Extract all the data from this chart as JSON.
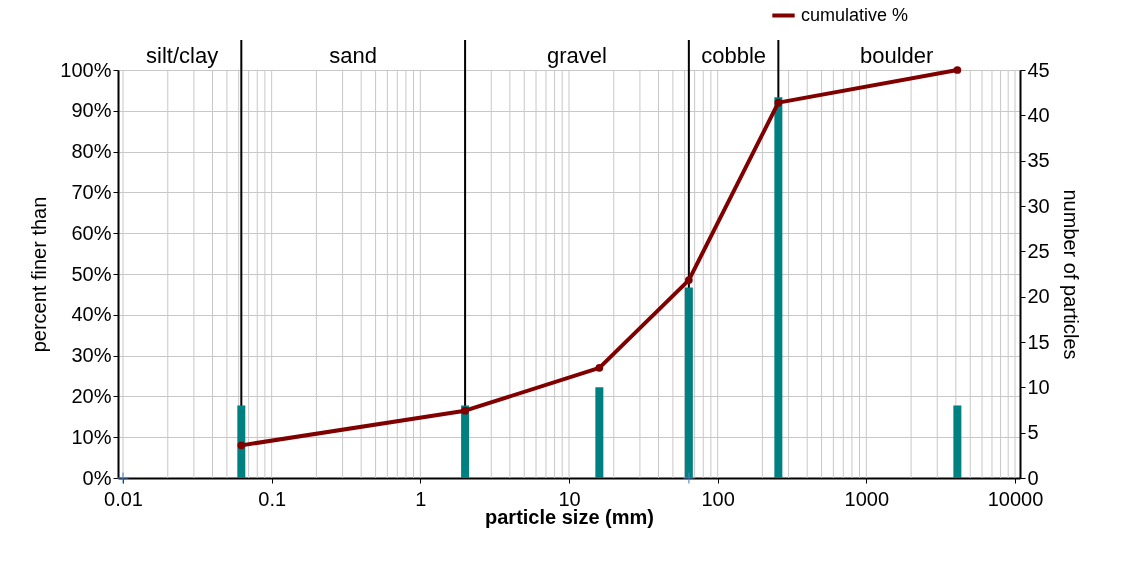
{
  "chart_data": {
    "type": "line",
    "xlabel": "particle size (mm)",
    "ylabel": "percent finer than",
    "y2label": "number of particles",
    "log": "x",
    "grid": true,
    "legend": "top right",
    "xlim": [
      0.01,
      10000
    ],
    "xticks": [
      0.01,
      0.1,
      1,
      10,
      100,
      1000,
      10000
    ],
    "ylim": [
      0,
      100
    ],
    "yticks": [
      {
        "value": 0,
        "label": "0%"
      },
      {
        "value": 10,
        "label": "10%"
      },
      {
        "value": 20,
        "label": "20%"
      },
      {
        "value": 30,
        "label": "30%"
      },
      {
        "value": 40,
        "label": "40%"
      },
      {
        "value": 50,
        "label": "50%"
      },
      {
        "value": 60,
        "label": "60%"
      },
      {
        "value": 70,
        "label": "70%"
      },
      {
        "value": 80,
        "label": "80%"
      },
      {
        "value": 90,
        "label": "90%"
      },
      {
        "value": 100,
        "label": "100%"
      }
    ],
    "y2lim": [
      0,
      45
    ],
    "y2ticks": [
      0,
      5,
      10,
      15,
      20,
      25,
      30,
      35,
      40,
      45
    ],
    "series": [
      {
        "name": "cumulative %",
        "marker": "circle",
        "color": "#800000",
        "x": [
          0.0625,
          2,
          16,
          64,
          256,
          4096
        ],
        "values": [
          8,
          16.5,
          27,
          48.5,
          92,
          100
        ]
      },
      {
        "type": "bar",
        "axis": "y2",
        "color": "#008080",
        "x": [
          0.0625,
          2,
          16,
          64,
          256,
          4096
        ],
        "values": [
          8,
          8,
          10,
          21,
          42,
          8
        ]
      },
      {
        "type": "scatter",
        "marker": "cross",
        "color": "#4f81bd",
        "x": [
          0.01,
          64
        ],
        "values": [
          0,
          0
        ]
      }
    ],
    "ref_lines": [
      {
        "axis": "x",
        "value": 0.0625,
        "color": "#000000"
      },
      {
        "axis": "x",
        "value": 2,
        "color": "#000000"
      },
      {
        "axis": "x",
        "value": 64,
        "color": "#000000"
      },
      {
        "axis": "x",
        "value": 256,
        "color": "#000000"
      }
    ],
    "annotations": [
      "silt/clay",
      "sand",
      "gravel",
      "cobble",
      "boulder"
    ]
  }
}
